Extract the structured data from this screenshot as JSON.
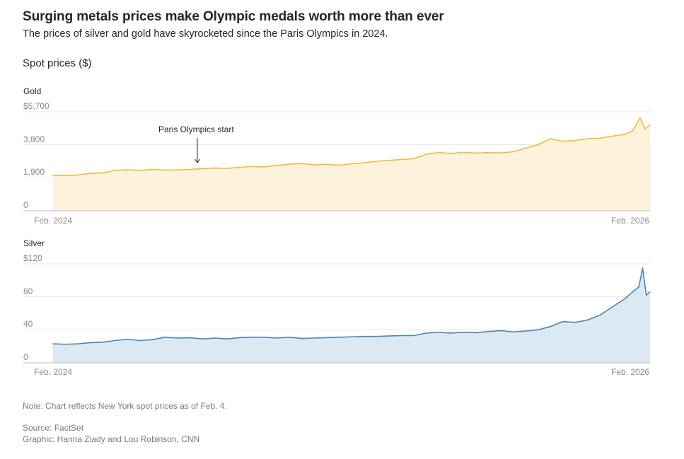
{
  "header": {
    "title": "Surging metals prices make Olympic medals worth more than ever",
    "subtitle": "The prices of silver and gold have skyrocketed since the Paris Olympics in 2024.",
    "section_label": "Spot prices ($)"
  },
  "chart_data": [
    {
      "type": "area",
      "title": "Gold",
      "xlabel": "",
      "ylabel": "Spot prices ($)",
      "x_tick_labels": [
        "Feb. 2024",
        "Feb. 2026"
      ],
      "y_ticks": [
        0,
        1900,
        3800,
        5700
      ],
      "y_tick_labels": [
        "0",
        "1,900",
        "3,800",
        "$5,700"
      ],
      "ylim": [
        0,
        5700
      ],
      "xlim": [
        0,
        24
      ],
      "grid": true,
      "color": "#f1b93f",
      "fill": "#fdf2dc",
      "annotation": {
        "text": "Paris Olympics start",
        "x": 5.8
      },
      "x": [
        0,
        0.5,
        1,
        1.5,
        2,
        2.5,
        3,
        3.5,
        4,
        4.5,
        5,
        5.5,
        6,
        6.5,
        7,
        7.5,
        8,
        8.5,
        9,
        9.5,
        10,
        10.5,
        11,
        11.5,
        12,
        12.5,
        13,
        13.5,
        14,
        14.5,
        15,
        15.5,
        16,
        16.5,
        17,
        17.5,
        18,
        18.5,
        19,
        19.5,
        20,
        20.5,
        21,
        21.5,
        22,
        22.5,
        23,
        23.3,
        23.6,
        23.8,
        24
      ],
      "values": [
        2040,
        2020,
        2060,
        2150,
        2180,
        2330,
        2360,
        2320,
        2380,
        2340,
        2350,
        2380,
        2420,
        2460,
        2440,
        2500,
        2550,
        2520,
        2620,
        2680,
        2720,
        2640,
        2680,
        2620,
        2700,
        2760,
        2850,
        2900,
        2950,
        3000,
        3250,
        3350,
        3300,
        3360,
        3320,
        3350,
        3330,
        3400,
        3600,
        3800,
        4150,
        4000,
        4050,
        4150,
        4180,
        4300,
        4400,
        4600,
        5350,
        4700,
        4950
      ]
    },
    {
      "type": "area",
      "title": "Silver",
      "xlabel": "",
      "ylabel": "Spot prices ($)",
      "x_tick_labels": [
        "Feb. 2024",
        "Feb. 2026"
      ],
      "y_ticks": [
        0,
        40,
        80,
        120
      ],
      "y_tick_labels": [
        "0",
        "40",
        "80",
        "$120"
      ],
      "ylim": [
        0,
        120
      ],
      "xlim": [
        0,
        24
      ],
      "grid": true,
      "color": "#4a86b8",
      "fill": "#dce9f3",
      "x": [
        0,
        0.5,
        1,
        1.5,
        2,
        2.5,
        3,
        3.5,
        4,
        4.5,
        5,
        5.5,
        6,
        6.5,
        7,
        7.5,
        8,
        8.5,
        9,
        9.5,
        10,
        10.5,
        11,
        11.5,
        12,
        12.5,
        13,
        13.5,
        14,
        14.5,
        15,
        15.5,
        16,
        16.5,
        17,
        17.5,
        18,
        18.5,
        19,
        19.5,
        20,
        20.5,
        21,
        21.5,
        22,
        22.5,
        23,
        23.3,
        23.55,
        23.7,
        23.85,
        24
      ],
      "values": [
        23,
        22.5,
        23,
        24.5,
        25,
        27,
        28.5,
        27,
        28,
        31,
        30,
        30.5,
        29,
        30,
        29,
        30.5,
        31,
        31,
        30,
        31,
        29.5,
        30,
        30.5,
        31,
        31.5,
        32,
        32,
        32.5,
        33,
        33,
        36,
        37,
        36,
        37,
        36.5,
        38,
        39,
        37.5,
        38.5,
        40,
        44,
        50,
        49,
        52,
        58,
        68,
        78,
        86,
        92,
        115,
        82,
        86
      ]
    }
  ],
  "footer": {
    "note": "Note: Chart reflects New York spot prices as of Feb. 4.",
    "source": "Source: FactSet",
    "credit": "Graphic: Hanna Ziady and Lou Robinson, CNN"
  }
}
